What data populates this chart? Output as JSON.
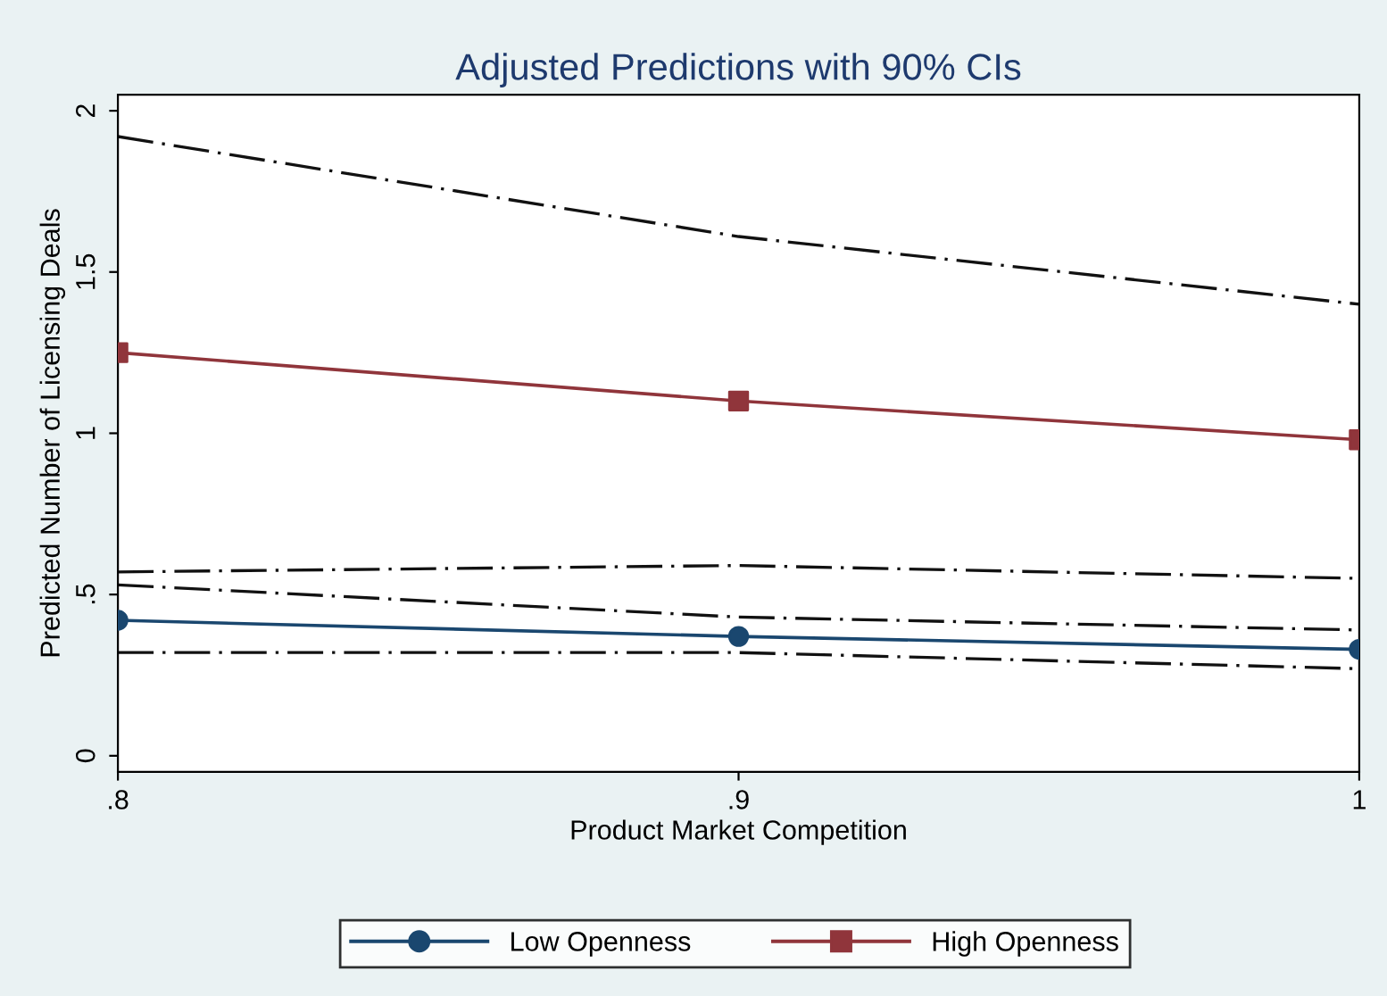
{
  "chart_data": {
    "type": "line",
    "title": "Adjusted Predictions with 90% CIs",
    "xlabel": "Product Market Competition",
    "ylabel": "Predicted Number of Licensing Deals",
    "x": [
      0.8,
      0.9,
      1.0
    ],
    "series": [
      {
        "name": "Low Openness",
        "color": "#1a476f",
        "marker": "circle",
        "line_style": "solid",
        "values": [
          0.42,
          0.37,
          0.33
        ]
      },
      {
        "name": "High Openness",
        "color": "#90353b",
        "marker": "square",
        "line_style": "solid",
        "values": [
          1.25,
          1.1,
          0.98
        ]
      },
      {
        "color": "#111111",
        "marker": "none",
        "line_style": "dashed",
        "values": [
          0.53,
          0.43,
          0.39
        ]
      },
      {
        "color": "#111111",
        "marker": "none",
        "line_style": "dashed",
        "values": [
          0.32,
          0.32,
          0.27
        ]
      },
      {
        "color": "#111111",
        "marker": "none",
        "line_style": "dashed",
        "values": [
          1.92,
          1.61,
          1.4
        ]
      },
      {
        "color": "#111111",
        "marker": "none",
        "line_style": "dashed",
        "values": [
          0.57,
          0.59,
          0.55
        ]
      }
    ],
    "xlim": [
      0.8,
      1.0
    ],
    "xticks": [
      {
        "value": 0.8,
        "label": ".8"
      },
      {
        "value": 0.9,
        "label": ".9"
      },
      {
        "value": 1.0,
        "label": "1"
      }
    ],
    "ylim": [
      -0.05,
      2.05
    ],
    "yticks": [
      0,
      {
        "value": 0.5,
        "label": ".5"
      },
      1,
      {
        "value": 1.5,
        "label": "1.5"
      },
      2
    ],
    "legend": "bottom"
  }
}
